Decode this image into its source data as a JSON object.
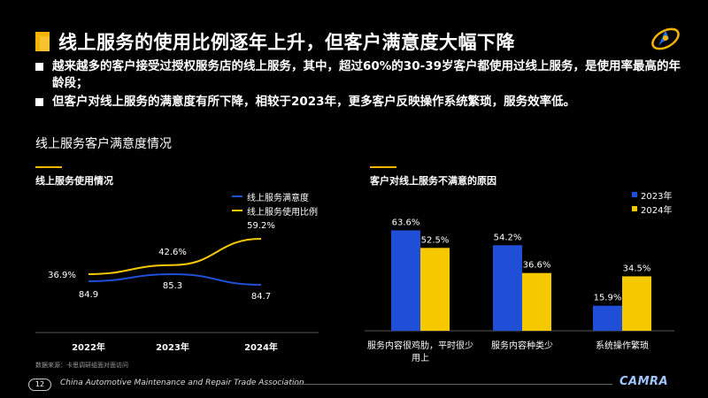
{
  "title": "线上服务的使用比例逐年上升，但客户满意度大幅下降",
  "bullets": [
    "越来越多的客户接受过授权服务店的线上服务，其中，超过60%的30-39岁客户都使用过线上服务，是使用率最高的年龄段；",
    "但客户对线上服务的满意度有所下降，相较于2023年，更多客户反映操作系统繁琐，服务效率低。"
  ],
  "section_title": "线上服务客户满意度情况",
  "colors": {
    "accent": "#f5b400",
    "blue": "#1f4fd6",
    "yellow": "#f5c800"
  },
  "chart_data": [
    {
      "type": "line",
      "title": "线上服务使用情况",
      "x": [
        "2022年",
        "2023年",
        "2024年"
      ],
      "series": [
        {
          "name": "线上服务满意度",
          "color": "#1f4fd6",
          "values": [
            84.9,
            85.3,
            84.7
          ],
          "labels": [
            "84.9",
            "85.3",
            "84.7"
          ]
        },
        {
          "name": "线上服务使用比例",
          "color": "#f5c800",
          "values": [
            36.9,
            42.6,
            59.2
          ],
          "labels": [
            "36.9%",
            "42.6%",
            "59.2%"
          ]
        }
      ]
    },
    {
      "type": "bar",
      "title": "客户对线上服务不满意的原因",
      "categories": [
        "服务内容很鸡肋，平时很少用上",
        "服务内容种类少",
        "系统操作繁琐"
      ],
      "series": [
        {
          "name": "2023年",
          "color": "#1f4fd6",
          "values": [
            63.6,
            54.2,
            15.9
          ]
        },
        {
          "name": "2024年",
          "color": "#f5c800",
          "values": [
            52.5,
            36.6,
            34.5
          ]
        }
      ],
      "ylim": [
        0,
        70
      ]
    }
  ],
  "source": "数据来源：卡思调研组面对面访问",
  "footer": {
    "page": "12",
    "org": "China Automotive Maintenance and Repair Trade Association",
    "brand": "CAMRA"
  }
}
